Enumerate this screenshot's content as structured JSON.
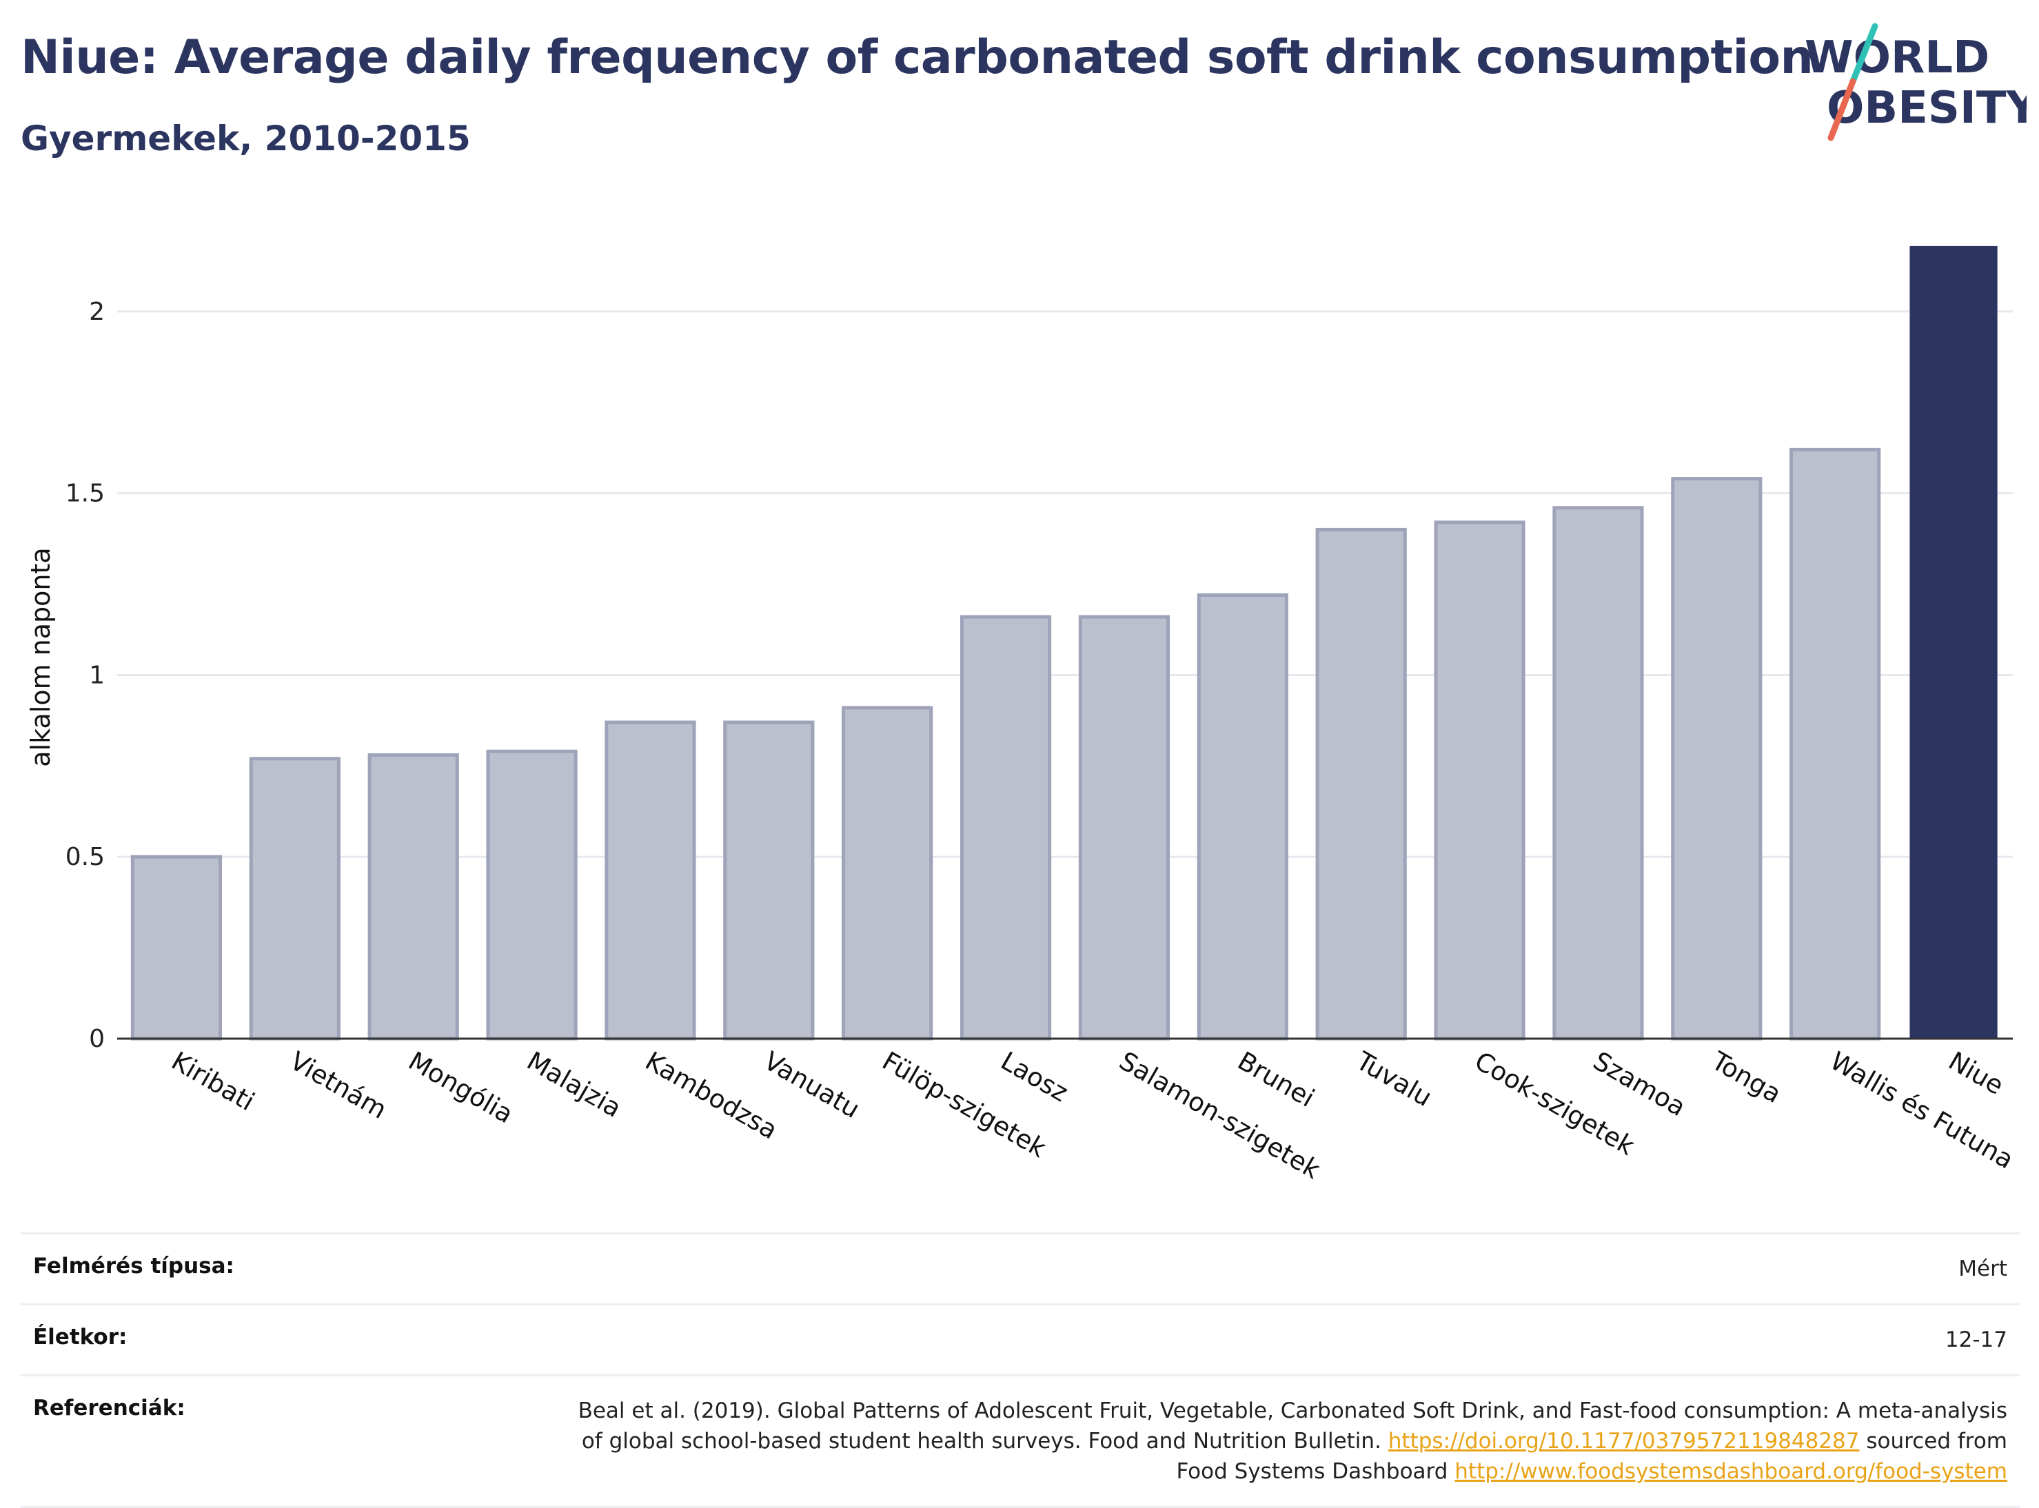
{
  "header": {
    "title": "Niue: Average daily frequency of carbonated soft drink consumption",
    "subtitle": "Gyermekek, 2010-2015"
  },
  "logo": {
    "line1": "WORLD",
    "line2": "OBESITY"
  },
  "chart_data": {
    "type": "bar",
    "categories": [
      "Kiribati",
      "Vietnám",
      "Mongólia",
      "Malajzia",
      "Kambodzsa",
      "Vanuatu",
      "Fülöp-szigetek",
      "Laosz",
      "Salamon-szigetek",
      "Brunei",
      "Tuvalu",
      "Cook-szigetek",
      "Szamoa",
      "Tonga",
      "Wallis és Futuna",
      "Niue"
    ],
    "values": [
      0.5,
      0.77,
      0.78,
      0.79,
      0.87,
      0.87,
      0.91,
      1.16,
      1.16,
      1.22,
      1.4,
      1.42,
      1.46,
      1.54,
      1.62,
      2.18
    ],
    "highlight": "Niue",
    "ylabel": "alkalom naponta",
    "ylim": [
      0,
      2.25
    ],
    "yticks": [
      0,
      0.5,
      1,
      1.5,
      2
    ],
    "ytick_labels": [
      "0",
      "0.5",
      "1",
      "1.5",
      "2"
    ],
    "grid": true,
    "colors": {
      "bar": "#bcc0ce",
      "bar_edge": "#9ea3b9",
      "highlight": "#2c3560",
      "grid": "#e6e8ee",
      "axis": "#333333"
    }
  },
  "info_table": {
    "rows": [
      {
        "key": "Felmérés típusa:",
        "value": "Mért"
      },
      {
        "key": "Életkor:",
        "value": "12-17"
      }
    ],
    "references": {
      "key": "Referenciák:",
      "line1": "Beal et al. (2019). Global Patterns of Adolescent Fruit, Vegetable, Carbonated Soft Drink, and Fast-food consumption: A meta-analysis",
      "line2_text": "of global school-based student health surveys. Food and Nutrition Bulletin.",
      "link1": "https://doi.org/10.1177/0379572119848287",
      "line2_suffix": "sourced from",
      "line3_text": "Food Systems Dashboard",
      "link2": "http://www.foodsystemsdashboard.org/food-system"
    }
  }
}
